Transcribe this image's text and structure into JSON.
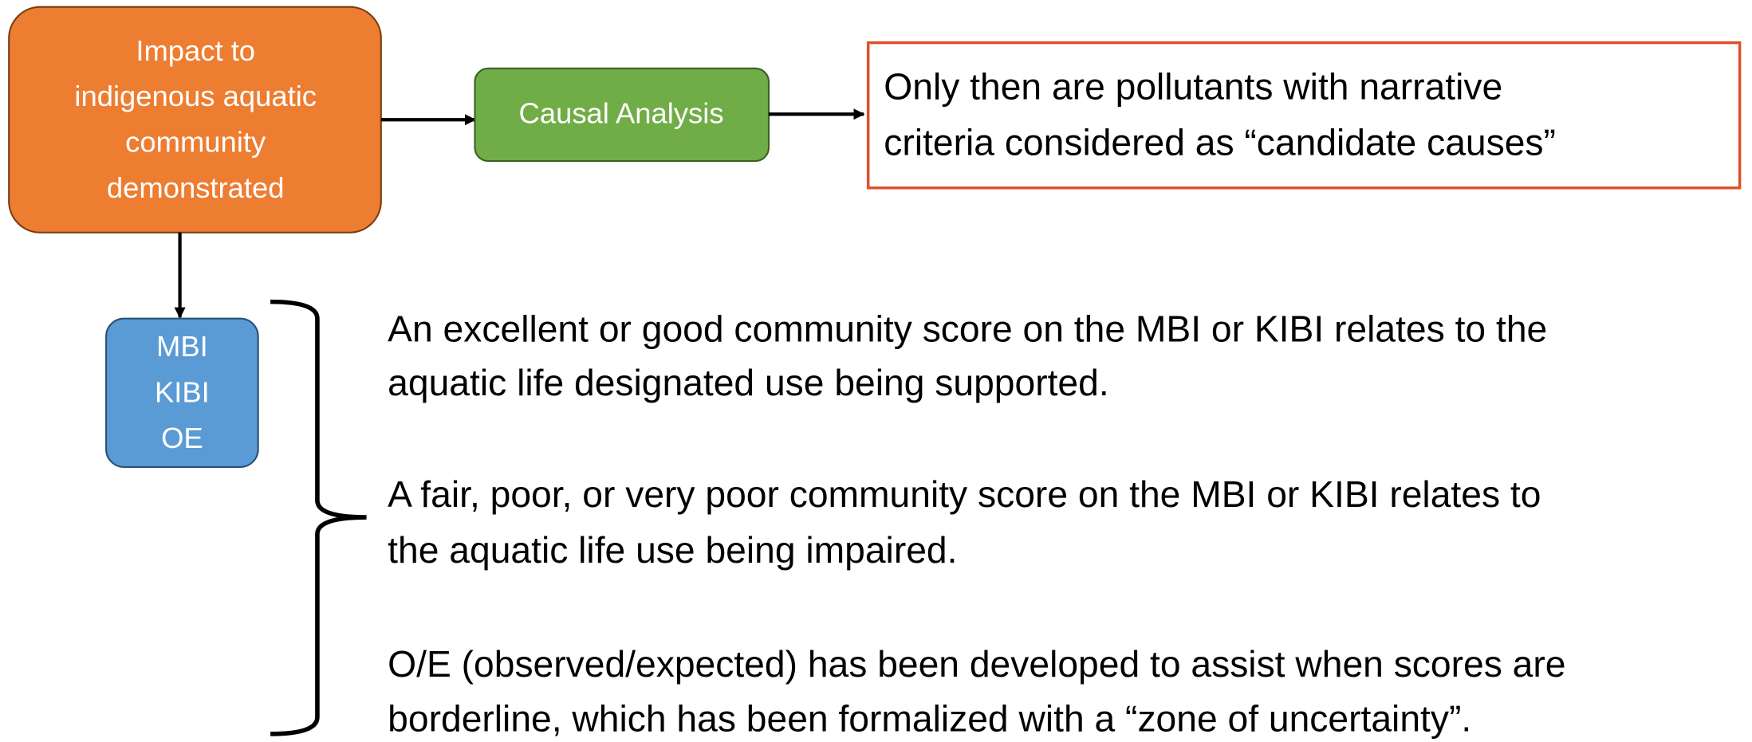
{
  "nodes": [
    {
      "label": [
        "Impact to",
        "indigenous aquatic",
        "community",
        "demonstrated"
      ]
    },
    {
      "label": [
        "Causal Analysis"
      ]
    },
    {
      "label": [
        "Only then are pollutants with narrative",
        "criteria considered as “candidate causes”"
      ]
    },
    {
      "label": [
        "MBI",
        "KIBI",
        "OE"
      ]
    }
  ],
  "paragraphs": [
    [
      "An excellent or good community score on the MBI or KIBI relates to the",
      "aquatic life designated use being supported."
    ],
    [
      "A fair, poor, or very poor community score on the MBI or KIBI relates to",
      "the aquatic life use being impaired."
    ],
    [
      "O/E (observed/expected) has been developed to assist when scores are",
      "borderline, which has been formalized with a “zone of uncertainty”."
    ]
  ]
}
